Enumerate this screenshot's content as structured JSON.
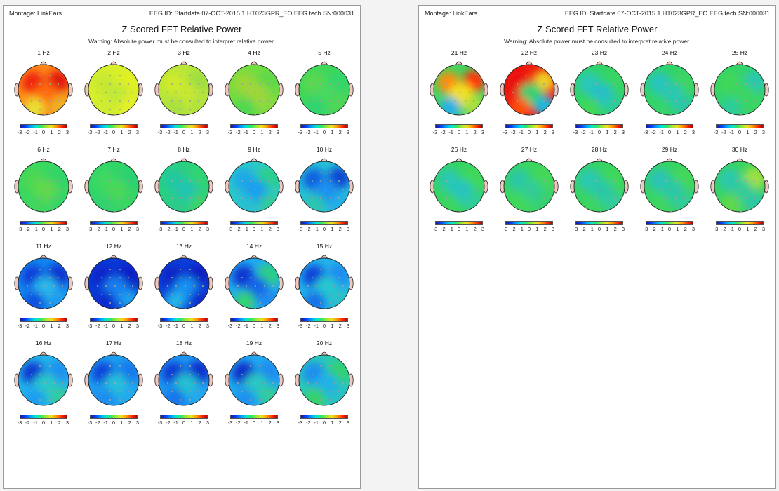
{
  "pages": [
    {
      "montage": "Montage:  LinkEars",
      "eeg_id": "EEG ID:  Startdate 07-OCT-2015 1.HT023GPR_EO EEG tech SN:000031",
      "title": "Z Scored FFT Relative Power",
      "warning": "Warning:  Absolute power must be consulted to interpret relative power.",
      "maps": [
        {
          "label": "1 Hz",
          "bg": "#ff8c1a",
          "blobs": [
            {
              "c": "#ee2010"
            },
            {
              "c": "#e01808"
            },
            {
              "c": "#ff6a10"
            },
            {
              "c": "#e8e030"
            },
            {
              "c": "#f0b020"
            }
          ]
        },
        {
          "label": "2 Hz",
          "bg": "#d8ef2a",
          "blobs": [
            {
              "c": "#c8e830"
            },
            {
              "c": "#e0f020"
            },
            {
              "c": "#c0e838"
            },
            {
              "c": "#d0ec30"
            },
            {
              "c": "#e4f028"
            }
          ]
        },
        {
          "label": "3 Hz",
          "bg": "#b8e63a",
          "blobs": [
            {
              "c": "#d0ea2a"
            },
            {
              "c": "#9ede40"
            },
            {
              "c": "#c8e830"
            },
            {
              "c": "#a8e040"
            },
            {
              "c": "#b0e23c"
            }
          ]
        },
        {
          "label": "4 Hz",
          "bg": "#70dd40",
          "blobs": [
            {
              "c": "#9ad838"
            },
            {
              "c": "#60d848"
            },
            {
              "c": "#a0d63a"
            },
            {
              "c": "#50d850"
            },
            {
              "c": "#88da40"
            }
          ]
        },
        {
          "label": "5 Hz",
          "bg": "#3ed85a",
          "blobs": [
            {
              "c": "#5ad850"
            },
            {
              "c": "#30d66a"
            },
            {
              "c": "#48d85e"
            },
            {
              "c": "#2ed470"
            },
            {
              "c": "#50d656"
            }
          ]
        },
        {
          "label": "6 Hz",
          "bg": "#38d860",
          "blobs": [
            {
              "c": "#4ed852"
            },
            {
              "c": "#30d468"
            },
            {
              "c": "#62d84c"
            },
            {
              "c": "#40d65e"
            },
            {
              "c": "#36d666"
            }
          ]
        },
        {
          "label": "7 Hz",
          "bg": "#30d668",
          "blobs": [
            {
              "c": "#3ed862"
            },
            {
              "c": "#2ad272"
            },
            {
              "c": "#48d858"
            },
            {
              "c": "#30d26e"
            },
            {
              "c": "#38d664"
            }
          ]
        },
        {
          "label": "8 Hz",
          "bg": "#2ad080",
          "blobs": [
            {
              "c": "#24c8a0"
            },
            {
              "c": "#30d470"
            },
            {
              "c": "#22c4b0"
            },
            {
              "c": "#2ccc88"
            },
            {
              "c": "#3ad468"
            }
          ]
        },
        {
          "label": "9 Hz",
          "bg": "#2cc8c8",
          "blobs": [
            {
              "c": "#1aa8e8"
            },
            {
              "c": "#2cd088"
            },
            {
              "c": "#1e9ef0"
            },
            {
              "c": "#28c0d0"
            },
            {
              "c": "#30cc9a"
            }
          ]
        },
        {
          "label": "10 Hz",
          "bg": "#28c0d8",
          "blobs": [
            {
              "c": "#1060e0"
            },
            {
              "c": "#0a44d0"
            },
            {
              "c": "#1a90f0"
            },
            {
              "c": "#2cc6b0"
            },
            {
              "c": "#20aee8"
            }
          ]
        },
        {
          "label": "11 Hz",
          "bg": "#1488f0",
          "blobs": [
            {
              "c": "#0a3ad8"
            },
            {
              "c": "#0a30d0"
            },
            {
              "c": "#2ab8e8"
            },
            {
              "c": "#0e50e0"
            },
            {
              "c": "#1a9cf0"
            }
          ]
        },
        {
          "label": "12 Hz",
          "bg": "#0a3cd8",
          "blobs": [
            {
              "c": "#0a22c8"
            },
            {
              "c": "#0a1ec4"
            },
            {
              "c": "#1480ee"
            },
            {
              "c": "#0a2ccc"
            },
            {
              "c": "#1aa0ee"
            }
          ]
        },
        {
          "label": "13 Hz",
          "bg": "#0c40da",
          "blobs": [
            {
              "c": "#0a20c4"
            },
            {
              "c": "#0a1cc0"
            },
            {
              "c": "#1890f0"
            },
            {
              "c": "#22b4e8"
            },
            {
              "c": "#0a2ecc"
            }
          ]
        },
        {
          "label": "14 Hz",
          "bg": "#22aaee",
          "blobs": [
            {
              "c": "#0a30d0"
            },
            {
              "c": "#2cd080"
            },
            {
              "c": "#1464e8"
            },
            {
              "c": "#30d470"
            },
            {
              "c": "#1a8cf0"
            }
          ]
        },
        {
          "label": "15 Hz",
          "bg": "#24b4ea",
          "blobs": [
            {
              "c": "#0c3cd8"
            },
            {
              "c": "#1a8cf0"
            },
            {
              "c": "#28c8d0"
            },
            {
              "c": "#1470e8"
            },
            {
              "c": "#2cc0c8"
            }
          ]
        },
        {
          "label": "16 Hz",
          "bg": "#24b4ea",
          "blobs": [
            {
              "c": "#0a30d0"
            },
            {
              "c": "#1a90f0"
            },
            {
              "c": "#2ac8c8"
            },
            {
              "c": "#1e9ef0"
            },
            {
              "c": "#30cca0"
            }
          ]
        },
        {
          "label": "17 Hz",
          "bg": "#1e9ef0",
          "blobs": [
            {
              "c": "#0a40d8"
            },
            {
              "c": "#1478ec"
            },
            {
              "c": "#28c0d8"
            },
            {
              "c": "#1a8cf0"
            },
            {
              "c": "#22aaee"
            }
          ]
        },
        {
          "label": "18 Hz",
          "bg": "#1e98f0",
          "blobs": [
            {
              "c": "#0a34d0"
            },
            {
              "c": "#0a2ccc"
            },
            {
              "c": "#28c0d0"
            },
            {
              "c": "#1474ea"
            },
            {
              "c": "#20a8ee"
            }
          ]
        },
        {
          "label": "19 Hz",
          "bg": "#22aaee",
          "blobs": [
            {
              "c": "#0a28c8"
            },
            {
              "c": "#1a8cf0"
            },
            {
              "c": "#2cc8c0"
            },
            {
              "c": "#1a90f0"
            },
            {
              "c": "#30cc98"
            }
          ]
        },
        {
          "label": "20 Hz",
          "bg": "#2cc8b8",
          "blobs": [
            {
              "c": "#1a8cf0"
            },
            {
              "c": "#30d070"
            },
            {
              "c": "#22b0e8"
            },
            {
              "c": "#34d268"
            },
            {
              "c": "#28c0c8"
            }
          ]
        }
      ]
    },
    {
      "montage": "Montage:  LinkEars",
      "eeg_id": "EEG ID:  Startdate 07-OCT-2015 1.HT023GPR_EO EEG tech SN:000031",
      "title": "Z Scored FFT Relative Power",
      "warning": "Warning:  Absolute power must be consulted to interpret relative power.",
      "maps": [
        {
          "label": "21 Hz",
          "bg": "#40d660",
          "blobs": [
            {
              "c": "#ff8a10"
            },
            {
              "c": "#ff3010"
            },
            {
              "c": "#f0e020"
            },
            {
              "c": "#20b0e8"
            },
            {
              "c": "#a8e040"
            }
          ]
        },
        {
          "label": "22 Hz",
          "bg": "#ee1a10",
          "blobs": [
            {
              "c": "#e80808"
            },
            {
              "c": "#f0d020"
            },
            {
              "c": "#30d070"
            },
            {
              "c": "#ff5010"
            },
            {
              "c": "#20b8e0"
            }
          ]
        },
        {
          "label": "23 Hz",
          "bg": "#30d468",
          "blobs": [
            {
              "c": "#2ac8b8"
            },
            {
              "c": "#38d660"
            },
            {
              "c": "#26c0c8"
            },
            {
              "c": "#40d85a"
            },
            {
              "c": "#2ccc98"
            }
          ]
        },
        {
          "label": "24 Hz",
          "bg": "#30d468",
          "blobs": [
            {
              "c": "#28c4c0"
            },
            {
              "c": "#3cd662"
            },
            {
              "c": "#2ac8b0"
            },
            {
              "c": "#34d46a"
            },
            {
              "c": "#2cc8a8"
            }
          ]
        },
        {
          "label": "25 Hz",
          "bg": "#34d468",
          "blobs": [
            {
              "c": "#40d85a"
            },
            {
              "c": "#2ac8b0"
            },
            {
              "c": "#3ad660"
            },
            {
              "c": "#2ccc9c"
            },
            {
              "c": "#38d664"
            }
          ]
        },
        {
          "label": "26 Hz",
          "bg": "#36d464",
          "blobs": [
            {
              "c": "#2cc8b0"
            },
            {
              "c": "#40d85a"
            },
            {
              "c": "#28c4c0"
            },
            {
              "c": "#3ad660"
            },
            {
              "c": "#2ecc9a"
            }
          ]
        },
        {
          "label": "27 Hz",
          "bg": "#3ad660",
          "blobs": [
            {
              "c": "#2cc8a8"
            },
            {
              "c": "#44d858"
            },
            {
              "c": "#30cc98"
            },
            {
              "c": "#40d85c"
            },
            {
              "c": "#34d070"
            }
          ]
        },
        {
          "label": "28 Hz",
          "bg": "#36d464",
          "blobs": [
            {
              "c": "#2ac8b4"
            },
            {
              "c": "#40d85a"
            },
            {
              "c": "#2cc8a8"
            },
            {
              "c": "#3ad660"
            },
            {
              "c": "#30cc9c"
            }
          ]
        },
        {
          "label": "29 Hz",
          "bg": "#36d464",
          "blobs": [
            {
              "c": "#2ac4b8"
            },
            {
              "c": "#44d858"
            },
            {
              "c": "#2cc8a8"
            },
            {
              "c": "#3cd660"
            },
            {
              "c": "#30cc98"
            }
          ]
        },
        {
          "label": "30 Hz",
          "bg": "#38d462",
          "blobs": [
            {
              "c": "#2cc8b0"
            },
            {
              "c": "#a0e040"
            },
            {
              "c": "#30cc98"
            },
            {
              "c": "#60d84c"
            },
            {
              "c": "#2ec8a4"
            }
          ]
        }
      ]
    }
  ],
  "colorbar": {
    "ticks": [
      "-3",
      "-2",
      "-1",
      "0",
      "1",
      "2",
      "3"
    ],
    "gradient": [
      "#1a1aa0",
      "#0040ff",
      "#00a0ff",
      "#00e8d0",
      "#30e860",
      "#a0e830",
      "#f0e020",
      "#ff9a00",
      "#ff3000",
      "#b00000"
    ]
  },
  "head_colors": {
    "outline": "#222222",
    "ear": "#f0c8c0",
    "nose": "#f0c8c0",
    "electrode": "#ffffff"
  }
}
